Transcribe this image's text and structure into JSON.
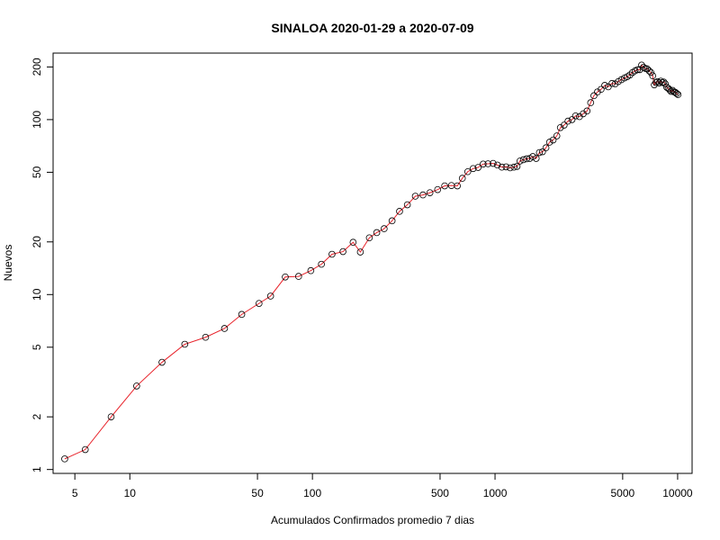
{
  "chart_data": {
    "type": "line",
    "title": "SINALOA 2020-01-29 a 2020-07-09",
    "xlabel": "Acumulados Confirmados promedio  7  dias",
    "ylabel": "Nuevos",
    "x_scale": "log",
    "y_scale": "log",
    "xlim": [
      3.8,
      12000
    ],
    "ylim": [
      0.95,
      240
    ],
    "x_ticks": [
      5,
      10,
      50,
      100,
      500,
      1000,
      5000,
      10000
    ],
    "x_tick_labels": [
      "5",
      "10",
      "50",
      "100",
      "500",
      "1000",
      "5000",
      "10000"
    ],
    "y_ticks": [
      1,
      2,
      5,
      10,
      20,
      50,
      100,
      200
    ],
    "y_tick_labels": [
      "1",
      "2",
      "5",
      "10",
      "20",
      "50",
      "100",
      "200"
    ],
    "grid": false,
    "line_color": "#e8222a",
    "point_color": "#000000",
    "points": [
      [
        4.4,
        1.15
      ],
      [
        5.7,
        1.3
      ],
      [
        7.9,
        2.0
      ],
      [
        10.9,
        3.0
      ],
      [
        15.0,
        4.1
      ],
      [
        20.0,
        5.2
      ],
      [
        26.0,
        5.7
      ],
      [
        33.0,
        6.4
      ],
      [
        41.0,
        7.7
      ],
      [
        51.0,
        8.9
      ],
      [
        59.0,
        9.8
      ],
      [
        71.0,
        12.6
      ],
      [
        84.0,
        12.7
      ],
      [
        98.0,
        13.7
      ],
      [
        112.0,
        14.9
      ],
      [
        128.0,
        17.0
      ],
      [
        147.0,
        17.6
      ],
      [
        167.0,
        19.9
      ],
      [
        183.0,
        17.5
      ],
      [
        205.0,
        21.1
      ],
      [
        225.0,
        22.6
      ],
      [
        247.0,
        23.8
      ],
      [
        273.0,
        26.4
      ],
      [
        300.0,
        29.9
      ],
      [
        331.0,
        32.6
      ],
      [
        366.0,
        36.5
      ],
      [
        403.0,
        37.1
      ],
      [
        440.0,
        38.2
      ],
      [
        485.0,
        39.8
      ],
      [
        530.0,
        41.8
      ],
      [
        577.0,
        42.0
      ],
      [
        622.0,
        41.8
      ],
      [
        662.0,
        46.2
      ],
      [
        709.0,
        50.4
      ],
      [
        759.0,
        52.5
      ],
      [
        808.0,
        53.3
      ],
      [
        861.0,
        55.7
      ],
      [
        915.0,
        55.9
      ],
      [
        976.0,
        56.2
      ],
      [
        1030.0,
        55.0
      ],
      [
        1090.0,
        53.5
      ],
      [
        1150.0,
        53.7
      ],
      [
        1210.0,
        53.0
      ],
      [
        1270.0,
        53.5
      ],
      [
        1320.0,
        54.0
      ],
      [
        1370.0,
        58.0
      ],
      [
        1430.0,
        59.0
      ],
      [
        1490.0,
        59.7
      ],
      [
        1550.0,
        60.0
      ],
      [
        1610.0,
        61.5
      ],
      [
        1680.0,
        60.0
      ],
      [
        1750.0,
        64.8
      ],
      [
        1820.0,
        65.5
      ],
      [
        1900.0,
        69.0
      ],
      [
        1990.0,
        74.3
      ],
      [
        2080.0,
        76.5
      ],
      [
        2180.0,
        80.7
      ],
      [
        2280.0,
        90.0
      ],
      [
        2390.0,
        93.0
      ],
      [
        2510.0,
        98.0
      ],
      [
        2640.0,
        100.0
      ],
      [
        2760.0,
        105.0
      ],
      [
        2900.0,
        104.0
      ],
      [
        3040.0,
        108.0
      ],
      [
        3190.0,
        112.0
      ],
      [
        3340.0,
        125.0
      ],
      [
        3480.0,
        137.0
      ],
      [
        3640.0,
        144.0
      ],
      [
        3810.0,
        149.0
      ],
      [
        3990.0,
        157.0
      ],
      [
        4170.0,
        154.0
      ],
      [
        4370.0,
        161.0
      ],
      [
        4550.0,
        160.0
      ],
      [
        4730.0,
        165.0
      ],
      [
        4920.0,
        169.0
      ],
      [
        5110.0,
        173.0
      ],
      [
        5300.0,
        176.0
      ],
      [
        5480.0,
        180.0
      ],
      [
        5660.0,
        186.0
      ],
      [
        5850.0,
        190.0
      ],
      [
        6030.0,
        193.0
      ],
      [
        6200.0,
        193.0
      ],
      [
        6350.0,
        205.0
      ],
      [
        6500.0,
        199.0
      ],
      [
        6660.0,
        196.0
      ],
      [
        6820.0,
        195.0
      ],
      [
        6980.0,
        190.0
      ],
      [
        7140.0,
        186.0
      ],
      [
        7300.0,
        178.0
      ],
      [
        7450.0,
        158.0
      ],
      [
        7600.0,
        163.0
      ],
      [
        7760.0,
        165.0
      ],
      [
        7920.0,
        162.0
      ],
      [
        8080.0,
        166.0
      ],
      [
        8240.0,
        163.0
      ],
      [
        8400.0,
        164.0
      ],
      [
        8560.0,
        160.0
      ],
      [
        8720.0,
        153.0
      ],
      [
        8880.0,
        151.0
      ],
      [
        9040.0,
        148.0
      ],
      [
        9200.0,
        145.0
      ],
      [
        9380.0,
        147.0
      ],
      [
        9550.0,
        144.0
      ],
      [
        9720.0,
        143.0
      ],
      [
        9880.0,
        141.0
      ],
      [
        10050.0,
        139.0
      ]
    ]
  }
}
